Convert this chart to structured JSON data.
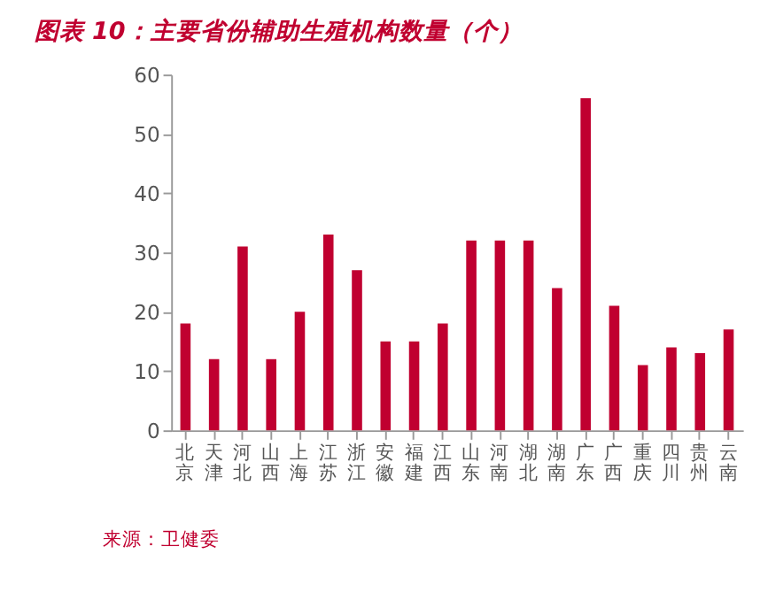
{
  "chart_data": {
    "type": "bar",
    "title": "图表 10：主要省份辅助生殖机构数量（个）",
    "categories": [
      "北京",
      "天津",
      "河北",
      "山西",
      "上海",
      "江苏",
      "浙江",
      "安徽",
      "福建",
      "江西",
      "山东",
      "河南",
      "湖北",
      "湖南",
      "广东",
      "广西",
      "重庆",
      "四川",
      "贵州",
      "云南"
    ],
    "values": [
      18,
      12,
      31,
      12,
      20,
      33,
      27,
      15,
      15,
      18,
      32,
      32,
      32,
      24,
      56,
      21,
      11,
      14,
      13,
      17
    ],
    "color": "#c00030",
    "ylim": [
      0,
      60
    ],
    "yticks": [
      0,
      10,
      20,
      30,
      40,
      50,
      60
    ],
    "grid": false,
    "annotations": [
      "来源：卫健委"
    ]
  }
}
